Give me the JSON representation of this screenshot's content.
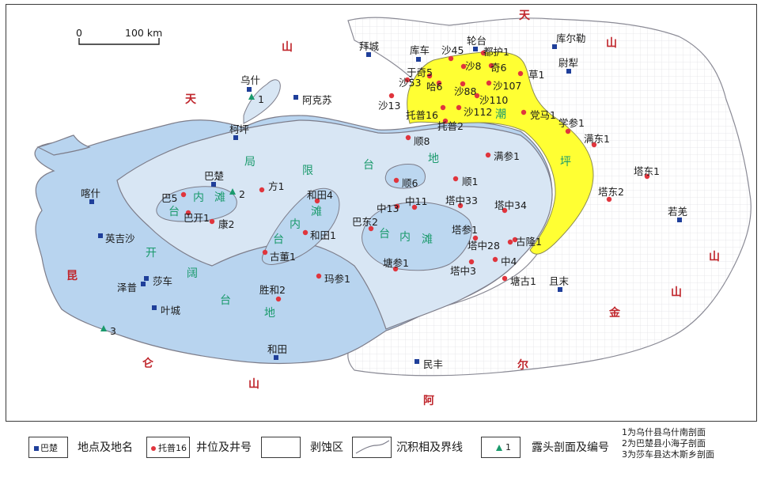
{
  "scale": {
    "zero": "0",
    "label": "100 km"
  },
  "mountains": {
    "tianshan": [
      "天",
      "山",
      "天",
      "山",
      "山"
    ],
    "kunlun": [
      "昆",
      "仑",
      "山"
    ],
    "altun": [
      "山",
      "金",
      "尔",
      "阿"
    ]
  },
  "zones": {
    "open_platform": [
      "开",
      "阔",
      "台",
      "地"
    ],
    "restricted_platform": [
      "局",
      "限",
      "台",
      "地"
    ],
    "platform_flats_1": [
      "台",
      "内",
      "滩"
    ],
    "platform_flats_2": [
      "内",
      "滩",
      "台"
    ],
    "platform_flats_3": [
      "台",
      "内",
      "滩"
    ],
    "tidal_flat": [
      "潮",
      "坪"
    ]
  },
  "places": {
    "baicheng": "拜城",
    "kuqa": "库车",
    "luntai": "轮台",
    "korla": "库尔勒",
    "yuli": "尉犁",
    "wushi": "乌什",
    "aksu": "阿克苏",
    "kalpin": "柯坪",
    "bachu": "巴楚",
    "kashgar": "喀什",
    "yengisar": "英吉沙",
    "shache": "莎车",
    "zepu": "泽普",
    "yecheng": "叶城",
    "hotan": "和田",
    "minfeng": "民丰",
    "qiemo": "且末",
    "ruoqiang": "若羌"
  },
  "wells": {
    "sha45": "沙45",
    "duhu1": "都护1",
    "sha8": "沙8",
    "qi6": "奇6",
    "yuqi5": "于奇5",
    "cao1": "草1",
    "sha53": "沙53",
    "ha6": "哈6",
    "sha88": "沙88",
    "sha107": "沙107",
    "sha13": "沙13",
    "sha110": "沙110",
    "tuopu16": "托普16",
    "sha112": "沙112",
    "dangma1": "党马1",
    "tuopu2": "托普2",
    "xuecan1": "学参1",
    "mandong1": "满东1",
    "shun8": "顺8",
    "mancan1": "满参1",
    "tadong1": "塔东1",
    "fang1": "方1",
    "shun6": "顺6",
    "shun1": "顺1",
    "tadong2": "塔东2",
    "ba5": "巴5",
    "hetian4": "和田4",
    "zhong13": "中13",
    "zhong11": "中11",
    "tazhong33": "塔中33",
    "tazhong34": "塔中34",
    "bakai1": "巴开1",
    "kang2": "康2",
    "badong2": "巴东2",
    "tacan1": "塔参1",
    "hetian1": "和田1",
    "tazhong28": "塔中28",
    "gulong1": "古隆1",
    "gudong1": "古董1",
    "tangcan1": "塘参1",
    "zhong4": "中4",
    "tazhong3": "塔中3",
    "macan1": "玛参1",
    "tanggu1": "塘古1",
    "shenghe2": "胜和2"
  },
  "outcrops": {
    "o1": "1",
    "o2": "2",
    "o3": "3"
  },
  "legend": {
    "place_sample": "巴楚",
    "place_desc": "地点及地名",
    "well_sample": "托普16",
    "well_desc": "井位及井号",
    "eroded_desc": "剥蚀区",
    "boundary_desc": "沉积相及界线",
    "outcrop_sample": "1",
    "outcrop_desc": "露头剖面及编号",
    "notes": [
      "1为乌什县乌什南剖面",
      "2为巴楚县小海子剖面",
      "3为莎车县达木斯乡剖面"
    ]
  },
  "colors": {
    "open_platform": "#b8d4ef",
    "restricted_platform": "#d8e6f4",
    "flats": "#bcd7f0",
    "tidal_flat": "#ffff33",
    "border": "#7d7d8a",
    "place": "#1f3f9a",
    "well": "#e0353d",
    "outcrop": "#1a9a6c",
    "mountain_text": "#c0272d",
    "zone_text": "#1a9a6c",
    "grid": "#e6e6e6"
  }
}
